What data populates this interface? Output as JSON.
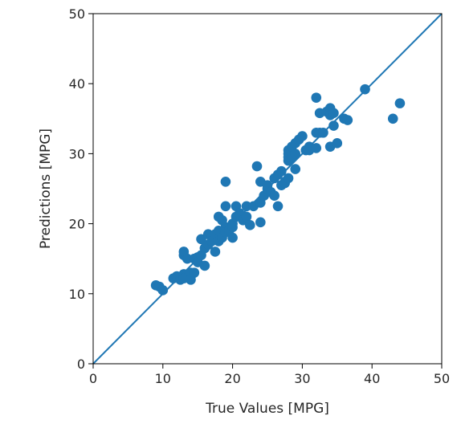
{
  "chart_data": {
    "type": "scatter",
    "title": "",
    "xlabel": "True Values [MPG]",
    "ylabel": "Predictions [MPG]",
    "xlim": [
      0,
      50
    ],
    "ylim": [
      0,
      50
    ],
    "xticks": [
      "0",
      "10",
      "20",
      "30",
      "40",
      "50"
    ],
    "yticks": [
      "0",
      "10",
      "20",
      "30",
      "40",
      "50"
    ],
    "grid": false,
    "reference_line": {
      "from": [
        0,
        0
      ],
      "to": [
        50,
        50
      ]
    },
    "point_color": "#1f77b4",
    "line_color": "#1f77b4",
    "points": [
      [
        9.0,
        11.2
      ],
      [
        9.5,
        11.0
      ],
      [
        10.0,
        10.5
      ],
      [
        11.5,
        12.2
      ],
      [
        12.0,
        12.5
      ],
      [
        12.5,
        12.0
      ],
      [
        13.0,
        12.8
      ],
      [
        13.0,
        12.2
      ],
      [
        13.0,
        15.5
      ],
      [
        13.0,
        16.0
      ],
      [
        13.5,
        15.0
      ],
      [
        14.0,
        12.5
      ],
      [
        14.0,
        13.0
      ],
      [
        14.0,
        12.0
      ],
      [
        14.5,
        13.0
      ],
      [
        14.5,
        15.0
      ],
      [
        15.0,
        15.2
      ],
      [
        15.0,
        14.5
      ],
      [
        15.5,
        15.5
      ],
      [
        15.5,
        17.8
      ],
      [
        16.0,
        16.5
      ],
      [
        16.0,
        14.0
      ],
      [
        16.5,
        17.0
      ],
      [
        16.5,
        18.5
      ],
      [
        17.0,
        18.0
      ],
      [
        17.0,
        17.5
      ],
      [
        17.5,
        16.0
      ],
      [
        17.5,
        18.5
      ],
      [
        18.0,
        17.5
      ],
      [
        18.0,
        19.0
      ],
      [
        18.0,
        21.0
      ],
      [
        18.5,
        18.0
      ],
      [
        18.5,
        20.5
      ],
      [
        19.0,
        19.5
      ],
      [
        19.0,
        18.8
      ],
      [
        19.0,
        22.5
      ],
      [
        19.0,
        26.0
      ],
      [
        19.5,
        19.0
      ],
      [
        20.0,
        18.0
      ],
      [
        20.0,
        20.0
      ],
      [
        20.0,
        19.5
      ],
      [
        20.5,
        21.0
      ],
      [
        20.5,
        22.5
      ],
      [
        21.0,
        21.5
      ],
      [
        21.5,
        20.5
      ],
      [
        22.0,
        21.0
      ],
      [
        22.0,
        22.5
      ],
      [
        22.5,
        19.8
      ],
      [
        23.0,
        22.5
      ],
      [
        23.5,
        28.2
      ],
      [
        24.0,
        26.0
      ],
      [
        24.0,
        23.0
      ],
      [
        24.0,
        20.2
      ],
      [
        24.5,
        24.0
      ],
      [
        25.0,
        25.0
      ],
      [
        25.0,
        25.5
      ],
      [
        25.5,
        24.5
      ],
      [
        26.0,
        26.5
      ],
      [
        26.0,
        24.0
      ],
      [
        26.5,
        27.0
      ],
      [
        26.5,
        22.5
      ],
      [
        27.0,
        27.5
      ],
      [
        27.0,
        25.5
      ],
      [
        27.5,
        26.0
      ],
      [
        27.5,
        25.8
      ],
      [
        28.0,
        26.5
      ],
      [
        28.0,
        29.5
      ],
      [
        28.0,
        30.5
      ],
      [
        28.0,
        30.0
      ],
      [
        28.0,
        29.0
      ],
      [
        28.5,
        31.0
      ],
      [
        28.5,
        29.5
      ],
      [
        29.0,
        31.5
      ],
      [
        29.0,
        30.0
      ],
      [
        29.0,
        27.8
      ],
      [
        29.5,
        32.0
      ],
      [
        30.0,
        32.5
      ],
      [
        30.5,
        30.5
      ],
      [
        31.0,
        31.0
      ],
      [
        31.0,
        30.5
      ],
      [
        32.0,
        38.0
      ],
      [
        32.0,
        33.0
      ],
      [
        32.0,
        30.8
      ],
      [
        32.5,
        33.0
      ],
      [
        32.5,
        35.8
      ],
      [
        33.0,
        33.0
      ],
      [
        33.5,
        36.0
      ],
      [
        34.0,
        36.5
      ],
      [
        34.0,
        35.5
      ],
      [
        34.0,
        31.0
      ],
      [
        34.5,
        34.0
      ],
      [
        34.5,
        35.8
      ],
      [
        35.0,
        31.5
      ],
      [
        36.0,
        35.0
      ],
      [
        36.5,
        34.8
      ],
      [
        39.0,
        39.2
      ],
      [
        43.0,
        35.0
      ],
      [
        44.0,
        37.2
      ]
    ]
  }
}
